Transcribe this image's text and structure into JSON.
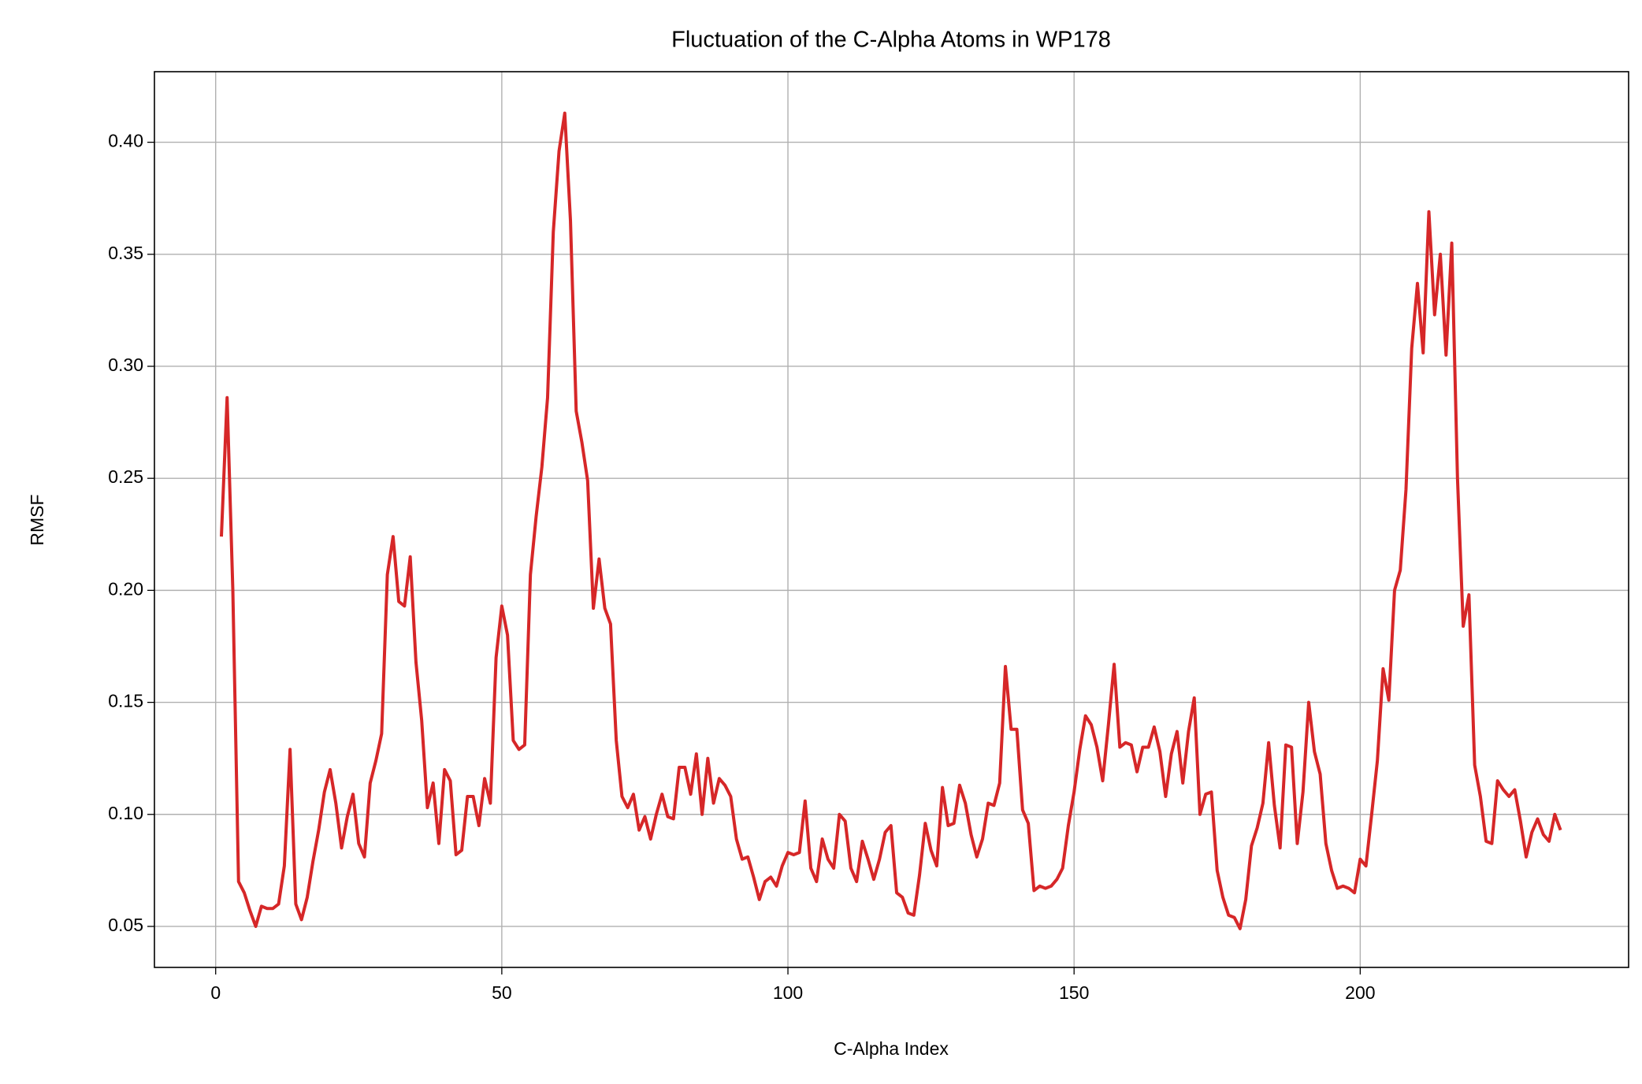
{
  "chart_data": {
    "type": "line",
    "title": "Fluctuation of the C-Alpha Atoms in WP178",
    "xlabel": "C-Alpha Index",
    "ylabel": "RMSF",
    "x": [
      1,
      2,
      3,
      4,
      5,
      6,
      7,
      8,
      9,
      10,
      11,
      12,
      13,
      14,
      15,
      16,
      17,
      18,
      19,
      20,
      21,
      22,
      23,
      24,
      25,
      26,
      27,
      28,
      29,
      30,
      31,
      32,
      33,
      34,
      35,
      36,
      37,
      38,
      39,
      40,
      41,
      42,
      43,
      44,
      45,
      46,
      47,
      48,
      49,
      50,
      51,
      52,
      53,
      54,
      55,
      56,
      57,
      58,
      59,
      60,
      61,
      62,
      63,
      64,
      65,
      66,
      67,
      68,
      69,
      70,
      71,
      72,
      73,
      74,
      75,
      76,
      77,
      78,
      79,
      80,
      81,
      82,
      83,
      84,
      85,
      86,
      87,
      88,
      89,
      90,
      91,
      92,
      93,
      94,
      95,
      96,
      97,
      98,
      99,
      100,
      101,
      102,
      103,
      104,
      105,
      106,
      107,
      108,
      109,
      110,
      111,
      112,
      113,
      114,
      115,
      116,
      117,
      118,
      119,
      120,
      121,
      122,
      123,
      124,
      125,
      126,
      127,
      128,
      129,
      130,
      131,
      132,
      133,
      134,
      135,
      136,
      137,
      138,
      139,
      140,
      141,
      142,
      143,
      144,
      145,
      146,
      147,
      148,
      149,
      150,
      151,
      152,
      153,
      154,
      155,
      156,
      157,
      158,
      159,
      160,
      161,
      162,
      163,
      164,
      165,
      166,
      167,
      168,
      169,
      170,
      171,
      172,
      173,
      174,
      175,
      176,
      177,
      178,
      179,
      180,
      181,
      182,
      183,
      184,
      185,
      186,
      187,
      188,
      189,
      190,
      191,
      192,
      193,
      194,
      195,
      196,
      197,
      198,
      199,
      200,
      201,
      202,
      203,
      204,
      205,
      206,
      207,
      208,
      209,
      210,
      211,
      212,
      213,
      214,
      215,
      216,
      217,
      218,
      219,
      220,
      221,
      222,
      223,
      224,
      225,
      226,
      227,
      228,
      229,
      230,
      231,
      232,
      233,
      234,
      235
    ],
    "series": [
      {
        "color": "#d62728",
        "values": [
          0.224,
          0.286,
          0.2,
          0.07,
          0.065,
          0.057,
          0.05,
          0.059,
          0.058,
          0.058,
          0.06,
          0.077,
          0.129,
          0.06,
          0.053,
          0.063,
          0.079,
          0.093,
          0.11,
          0.12,
          0.105,
          0.085,
          0.099,
          0.109,
          0.087,
          0.081,
          0.114,
          0.124,
          0.136,
          0.207,
          0.224,
          0.195,
          0.193,
          0.215,
          0.168,
          0.142,
          0.103,
          0.114,
          0.087,
          0.12,
          0.115,
          0.082,
          0.084,
          0.108,
          0.108,
          0.095,
          0.116,
          0.105,
          0.17,
          0.193,
          0.18,
          0.133,
          0.129,
          0.131,
          0.207,
          0.233,
          0.255,
          0.286,
          0.36,
          0.396,
          0.413,
          0.365,
          0.28,
          0.266,
          0.249,
          0.192,
          0.214,
          0.192,
          0.185,
          0.133,
          0.108,
          0.103,
          0.109,
          0.093,
          0.099,
          0.089,
          0.1,
          0.109,
          0.099,
          0.098,
          0.121,
          0.121,
          0.109,
          0.127,
          0.1,
          0.125,
          0.105,
          0.116,
          0.113,
          0.108,
          0.089,
          0.08,
          0.081,
          0.072,
          0.062,
          0.07,
          0.072,
          0.068,
          0.077,
          0.083,
          0.082,
          0.083,
          0.106,
          0.076,
          0.07,
          0.089,
          0.08,
          0.076,
          0.1,
          0.097,
          0.076,
          0.07,
          0.088,
          0.08,
          0.071,
          0.08,
          0.092,
          0.095,
          0.065,
          0.063,
          0.056,
          0.055,
          0.073,
          0.096,
          0.084,
          0.077,
          0.112,
          0.095,
          0.096,
          0.113,
          0.105,
          0.091,
          0.081,
          0.089,
          0.105,
          0.104,
          0.114,
          0.166,
          0.138,
          0.138,
          0.102,
          0.096,
          0.066,
          0.068,
          0.067,
          0.068,
          0.071,
          0.076,
          0.095,
          0.11,
          0.129,
          0.144,
          0.14,
          0.13,
          0.115,
          0.14,
          0.167,
          0.13,
          0.132,
          0.131,
          0.119,
          0.13,
          0.13,
          0.139,
          0.128,
          0.108,
          0.127,
          0.137,
          0.114,
          0.137,
          0.152,
          0.1,
          0.109,
          0.11,
          0.075,
          0.063,
          0.055,
          0.054,
          0.049,
          0.062,
          0.086,
          0.094,
          0.105,
          0.132,
          0.104,
          0.085,
          0.131,
          0.13,
          0.087,
          0.11,
          0.15,
          0.128,
          0.118,
          0.087,
          0.075,
          0.067,
          0.068,
          0.067,
          0.065,
          0.08,
          0.077,
          0.1,
          0.124,
          0.165,
          0.151,
          0.2,
          0.209,
          0.245,
          0.308,
          0.337,
          0.306,
          0.369,
          0.323,
          0.35,
          0.305,
          0.355,
          0.25,
          0.184,
          0.198,
          0.122,
          0.108,
          0.088,
          0.087,
          0.115,
          0.111,
          0.108,
          0.111,
          0.097,
          0.081,
          0.092,
          0.098,
          0.091,
          0.088,
          0.1,
          0.093
        ]
      }
    ],
    "xlim": [
      -10.7,
      246.9
    ],
    "ylim": [
      0.0317,
      0.4315
    ],
    "xticks": [
      0,
      50,
      100,
      150,
      200
    ],
    "yticks": [
      0.05,
      {
        "value": 0.1,
        "label": "0.10"
      },
      0.15,
      {
        "value": 0.2,
        "label": "0.20"
      },
      0.25,
      {
        "value": 0.3,
        "label": "0.30"
      },
      0.35,
      {
        "value": 0.4,
        "label": "0.40"
      }
    ],
    "grid": true
  }
}
